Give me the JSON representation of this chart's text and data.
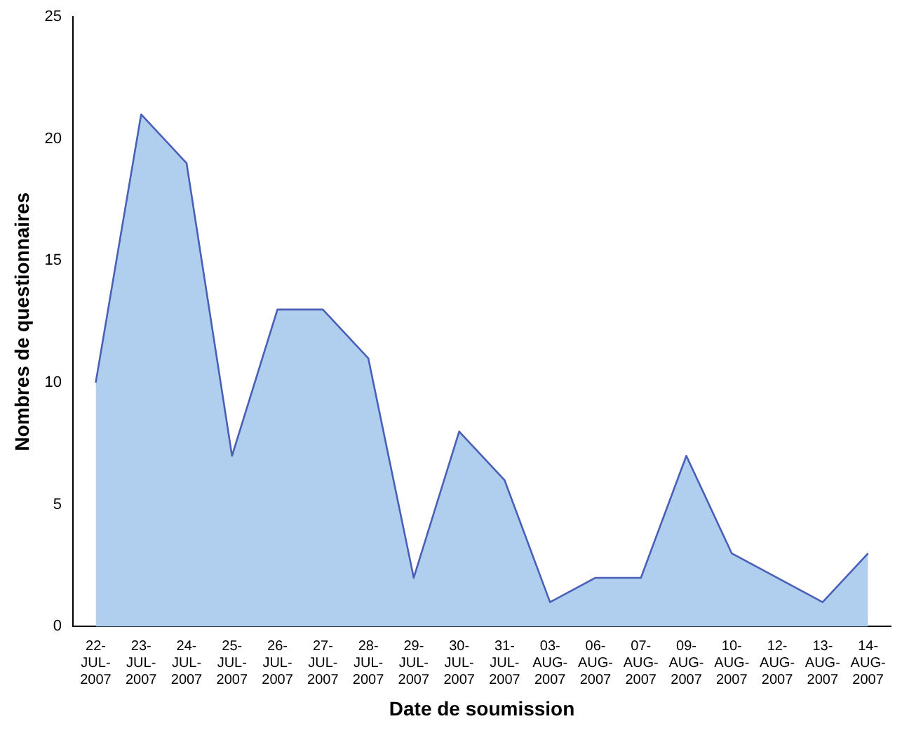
{
  "chart_data": {
    "type": "area",
    "xlabel": "Date de soumission",
    "ylabel": "Nombres de questionnaires",
    "categories": [
      "22-JUL-2007",
      "23-JUL-2007",
      "24-JUL-2007",
      "25-JUL-2007",
      "26-JUL-2007",
      "27-JUL-2007",
      "28-JUL-2007",
      "29-JUL-2007",
      "30-JUL-2007",
      "31-JUL-2007",
      "03-AUG-2007",
      "06-AUG-2007",
      "07-AUG-2007",
      "09-AUG-2007",
      "10-AUG-2007",
      "12-AUG-2007",
      "13-AUG-2007",
      "14-AUG-2007"
    ],
    "series": [
      {
        "color": "#4a5fb8",
        "values": [
          10,
          21,
          19,
          7,
          13,
          13,
          11,
          2,
          8,
          6,
          1,
          2,
          2,
          7,
          3,
          2,
          1,
          3
        ]
      }
    ],
    "ylim": [
      0,
      25
    ],
    "yticks": [
      0,
      5,
      10,
      15,
      20,
      25
    ],
    "grid": false,
    "legend": false,
    "marker": "none"
  }
}
